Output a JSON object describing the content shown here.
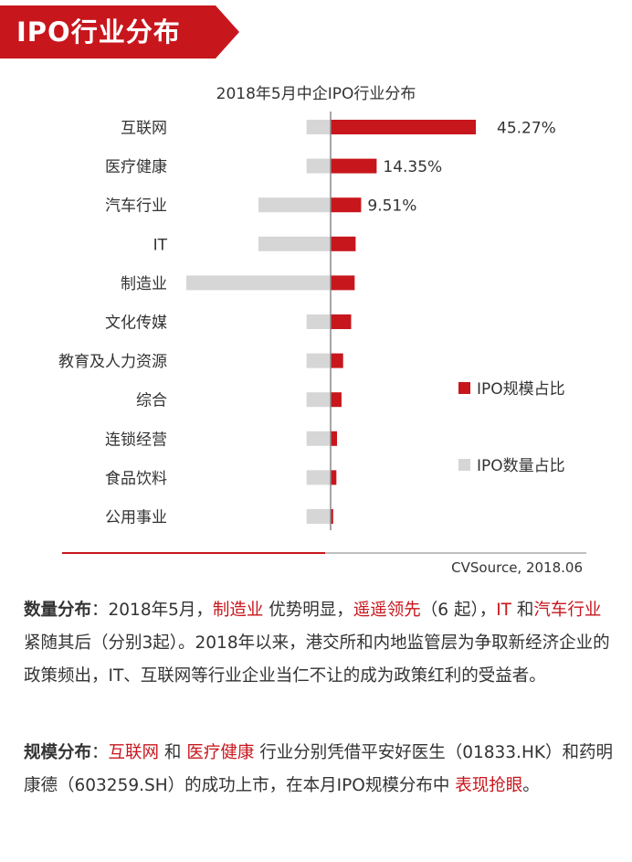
{
  "banner": {
    "title": "IPO行业分布"
  },
  "colors": {
    "scale": "#c8161d",
    "count": "#d6d6d6",
    "axis": "#888888",
    "source_line": "#c8161d"
  },
  "chart_data": {
    "type": "bar",
    "orientation": "horizontal-diverging",
    "title": "2018年5月中企IPO行业分布",
    "categories": [
      "互联网",
      "医疗健康",
      "汽车行业",
      "IT",
      "制造业",
      "文化传媒",
      "教育及人力资源",
      "综合",
      "连锁经营",
      "食品饮料",
      "公用事业"
    ],
    "series": [
      {
        "name": "IPO规模占比",
        "side": "right",
        "values": [
          45.27,
          14.35,
          9.51,
          7.8,
          7.5,
          6.4,
          3.9,
          3.4,
          2.0,
          1.8,
          0.8
        ],
        "data_labels": [
          "45.27%",
          "14.35%",
          "9.51%",
          "",
          "",
          "",
          "",
          "",
          "",
          "",
          ""
        ]
      },
      {
        "name": "IPO数量占比",
        "side": "left",
        "values": [
          1,
          1,
          3,
          3,
          6,
          1,
          1,
          1,
          1,
          1,
          1
        ]
      }
    ],
    "legend": "right-middle",
    "source": "CVSource, 2018.06"
  },
  "text": {
    "p1": {
      "label": "数量分布",
      "s1": "：2018年5月，",
      "h1": "制造业",
      "s2": " 优势明显，",
      "h2": "遥遥领先",
      "s3": "（6 起），",
      "h3": "IT",
      "s4": " 和",
      "h4": "汽车行业",
      "s5": " 紧随其后（分别3起）。2018年以来，港交所和内地监管层为争取新经济企业的政策频出，IT、互联网等行业企业当仁不让的成为政策红利的受益者。"
    },
    "p2": {
      "label": "规模分布",
      "s1": "：",
      "h1": "互联网",
      "s2": " 和 ",
      "h2": "医疗健康",
      "s3": " 行业分别凭借平安好医生（01833.HK）和药明康德（603259.SH）的成功上市，在本月IPO规模分布中 ",
      "h3": "表现抢眼",
      "s4": "。"
    }
  }
}
